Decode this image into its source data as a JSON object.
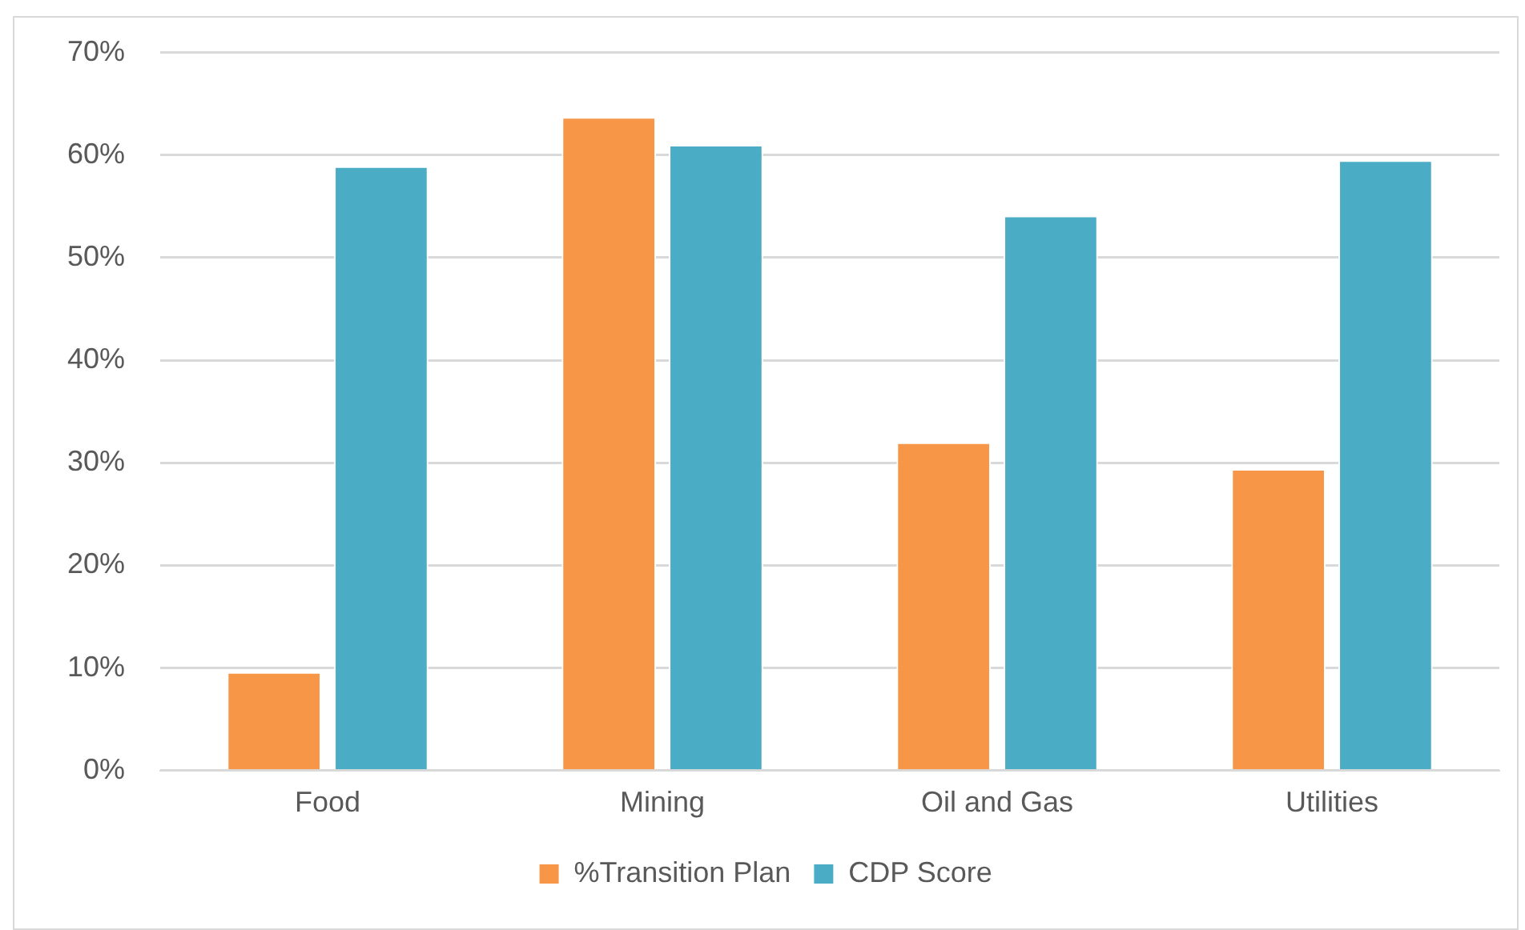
{
  "chart_data": {
    "type": "bar",
    "categories": [
      "Food",
      "Mining",
      "Oil and Gas",
      "Utilities"
    ],
    "series": [
      {
        "name": "%Transition Plan",
        "color": "#f79646",
        "values": [
          9.6,
          63.7,
          32.0,
          29.4
        ]
      },
      {
        "name": "CDP Score",
        "color": "#4bacc6",
        "values": [
          58.9,
          61.0,
          54.1,
          59.5
        ]
      }
    ],
    "ylim": [
      0,
      70
    ],
    "yticks": [
      {
        "value": 0,
        "label": "0%"
      },
      {
        "value": 10,
        "label": "10%"
      },
      {
        "value": 20,
        "label": "20%"
      },
      {
        "value": 30,
        "label": "30%"
      },
      {
        "value": 40,
        "label": "40%"
      },
      {
        "value": 50,
        "label": "50%"
      },
      {
        "value": 60,
        "label": "60%"
      },
      {
        "value": 70,
        "label": "70%"
      }
    ],
    "grid": "y",
    "legend": "bottom"
  }
}
